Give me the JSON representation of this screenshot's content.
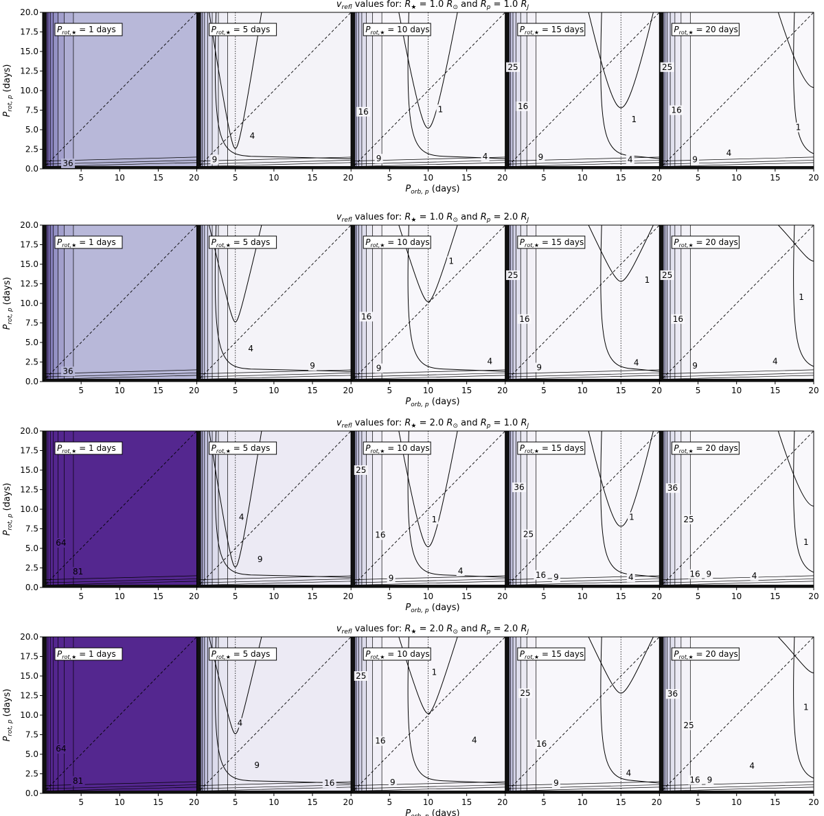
{
  "figure": {
    "grid_rows": 4,
    "grid_cols": 5
  },
  "chart_data": {
    "type": "heatmap",
    "colormap": "Purples",
    "xlabel": "P_orb,p (days)",
    "ylabel": "P_rot,p (days)",
    "xlim": [
      0,
      20
    ],
    "ylim": [
      0,
      20
    ],
    "x_ticks": [
      5,
      10,
      15,
      20
    ],
    "y_ticks": [
      "0.0",
      "2.5",
      "5.0",
      "7.5",
      "10.0",
      "12.5",
      "15.0",
      "17.5",
      "20.0"
    ],
    "rows": [
      {
        "title_prefix": "v_refl values for: ",
        "r_star": "1.0",
        "r_p": "1.0",
        "panels": [
          {
            "label": "1",
            "star_period": 1,
            "contours": [
              {
                "value": 36,
                "x": 3.3,
                "y": 0.7
              }
            ],
            "fill_level": 0.42
          },
          {
            "label": "5",
            "star_period": 5,
            "contours": [
              {
                "value": 4,
                "x": 7.2,
                "y": 4.2
              },
              {
                "value": 9,
                "x": 2.3,
                "y": 1.2
              }
            ],
            "fill_level": 0.06
          },
          {
            "label": "10",
            "star_period": 10,
            "contours": [
              {
                "value": 1,
                "x": 11.6,
                "y": 7.6
              },
              {
                "value": 4,
                "x": 17.4,
                "y": 1.6
              },
              {
                "value": 9,
                "x": 3.6,
                "y": 1.3
              },
              {
                "value": 16,
                "x": 1.6,
                "y": 7.3
              }
            ],
            "fill_level": 0.03
          },
          {
            "label": "15",
            "star_period": 15,
            "contours": [
              {
                "value": 1,
                "x": 16.7,
                "y": 6.3
              },
              {
                "value": 4,
                "x": 16.2,
                "y": 1.2
              },
              {
                "value": 9,
                "x": 4.6,
                "y": 1.5
              },
              {
                "value": 16,
                "x": 2.3,
                "y": 8.0
              },
              {
                "value": 25,
                "x": 1.0,
                "y": 13.0
              }
            ],
            "fill_level": 0.03
          },
          {
            "label": "20",
            "star_period": 20,
            "contours": [
              {
                "value": 1,
                "x": 18.0,
                "y": 5.3
              },
              {
                "value": 4,
                "x": 9.0,
                "y": 2.0
              },
              {
                "value": 9,
                "x": 4.6,
                "y": 1.2
              },
              {
                "value": 16,
                "x": 2.2,
                "y": 7.5
              },
              {
                "value": 25,
                "x": 1.0,
                "y": 13.0
              }
            ],
            "fill_level": 0.02
          }
        ]
      },
      {
        "title_prefix": "v_refl values for: ",
        "r_star": "1.0",
        "r_p": "2.0",
        "panels": [
          {
            "label": "1",
            "star_period": 1,
            "contours": [
              {
                "value": 36,
                "x": 3.3,
                "y": 1.3
              }
            ],
            "fill_level": 0.42
          },
          {
            "label": "5",
            "star_period": 5,
            "contours": [
              {
                "value": 4,
                "x": 7.0,
                "y": 4.2
              },
              {
                "value": 9,
                "x": 15.0,
                "y": 2.0
              }
            ],
            "fill_level": 0.06
          },
          {
            "label": "10",
            "star_period": 10,
            "contours": [
              {
                "value": 1,
                "x": 13.0,
                "y": 15.4
              },
              {
                "value": 4,
                "x": 18.0,
                "y": 2.6
              },
              {
                "value": 9,
                "x": 3.6,
                "y": 1.7
              },
              {
                "value": 16,
                "x": 2.0,
                "y": 8.3
              }
            ],
            "fill_level": 0.03
          },
          {
            "label": "15",
            "star_period": 15,
            "contours": [
              {
                "value": 1,
                "x": 18.4,
                "y": 13.0
              },
              {
                "value": 4,
                "x": 17.0,
                "y": 2.4
              },
              {
                "value": 9,
                "x": 4.4,
                "y": 1.8
              },
              {
                "value": 16,
                "x": 2.5,
                "y": 8.0
              },
              {
                "value": 25,
                "x": 1.0,
                "y": 13.6
              }
            ],
            "fill_level": 0.03
          },
          {
            "label": "20",
            "star_period": 20,
            "contours": [
              {
                "value": 1,
                "x": 18.4,
                "y": 10.8
              },
              {
                "value": 4,
                "x": 15.0,
                "y": 2.6
              },
              {
                "value": 9,
                "x": 4.6,
                "y": 2.0
              },
              {
                "value": 16,
                "x": 2.4,
                "y": 8.0
              },
              {
                "value": 25,
                "x": 1.0,
                "y": 13.6
              }
            ],
            "fill_level": 0.02
          }
        ]
      },
      {
        "title_prefix": "v_refl values for: ",
        "r_star": "2.0",
        "r_p": "1.0",
        "panels": [
          {
            "label": "1",
            "star_period": 1,
            "contours": [
              {
                "value": 64,
                "x": 2.4,
                "y": 5.7
              },
              {
                "value": 81,
                "x": 4.6,
                "y": 2.0
              }
            ],
            "fill_level": 1.0
          },
          {
            "label": "5",
            "star_period": 5,
            "contours": [
              {
                "value": 4,
                "x": 5.8,
                "y": 9.0
              },
              {
                "value": 9,
                "x": 8.2,
                "y": 3.6
              }
            ],
            "fill_level": 0.12
          },
          {
            "label": "10",
            "star_period": 10,
            "contours": [
              {
                "value": 1,
                "x": 10.8,
                "y": 8.7
              },
              {
                "value": 4,
                "x": 14.2,
                "y": 2.1
              },
              {
                "value": 9,
                "x": 5.2,
                "y": 1.2
              },
              {
                "value": 16,
                "x": 3.8,
                "y": 6.7
              },
              {
                "value": 25,
                "x": 1.3,
                "y": 15.0
              }
            ],
            "fill_level": 0.04
          },
          {
            "label": "15",
            "star_period": 15,
            "contours": [
              {
                "value": 1,
                "x": 16.4,
                "y": 9.0
              },
              {
                "value": 4,
                "x": 16.3,
                "y": 1.3
              },
              {
                "value": 9,
                "x": 6.6,
                "y": 1.3
              },
              {
                "value": 16,
                "x": 4.6,
                "y": 1.6
              },
              {
                "value": 25,
                "x": 3.0,
                "y": 6.8
              },
              {
                "value": 36,
                "x": 1.8,
                "y": 12.8
              }
            ],
            "fill_level": 0.03
          },
          {
            "label": "20",
            "star_period": 20,
            "contours": [
              {
                "value": 1,
                "x": 19.0,
                "y": 5.8
              },
              {
                "value": 4,
                "x": 12.3,
                "y": 1.5
              },
              {
                "value": 9,
                "x": 6.4,
                "y": 1.7
              },
              {
                "value": 16,
                "x": 4.6,
                "y": 1.7
              },
              {
                "value": 25,
                "x": 3.8,
                "y": 8.7
              },
              {
                "value": 36,
                "x": 1.7,
                "y": 12.7
              }
            ],
            "fill_level": 0.02
          }
        ]
      },
      {
        "title_prefix": "v_refl values for: ",
        "r_star": "2.0",
        "r_p": "2.0",
        "panels": [
          {
            "label": "1",
            "star_period": 1,
            "contours": [
              {
                "value": 64,
                "x": 2.4,
                "y": 5.7
              },
              {
                "value": 81,
                "x": 4.6,
                "y": 1.6
              }
            ],
            "fill_level": 1.0
          },
          {
            "label": "5",
            "star_period": 5,
            "contours": [
              {
                "value": 4,
                "x": 5.6,
                "y": 9.0
              },
              {
                "value": 9,
                "x": 7.8,
                "y": 3.6
              },
              {
                "value": 16,
                "x": 17.2,
                "y": 1.3
              }
            ],
            "fill_level": 0.12
          },
          {
            "label": "10",
            "star_period": 10,
            "contours": [
              {
                "value": 1,
                "x": 10.8,
                "y": 15.5
              },
              {
                "value": 4,
                "x": 16.0,
                "y": 6.8
              },
              {
                "value": 9,
                "x": 5.4,
                "y": 1.4
              },
              {
                "value": 16,
                "x": 3.8,
                "y": 6.7
              },
              {
                "value": 25,
                "x": 1.3,
                "y": 15.0
              }
            ],
            "fill_level": 0.04
          },
          {
            "label": "15",
            "star_period": 15,
            "contours": [
              {
                "value": 4,
                "x": 16.0,
                "y": 2.6
              },
              {
                "value": 9,
                "x": 6.6,
                "y": 1.3
              },
              {
                "value": 16,
                "x": 4.7,
                "y": 6.3
              },
              {
                "value": 25,
                "x": 2.6,
                "y": 12.8
              }
            ],
            "fill_level": 0.03
          },
          {
            "label": "20",
            "star_period": 20,
            "contours": [
              {
                "value": 1,
                "x": 19.0,
                "y": 11.0
              },
              {
                "value": 4,
                "x": 12.0,
                "y": 3.5
              },
              {
                "value": 9,
                "x": 6.5,
                "y": 1.7
              },
              {
                "value": 16,
                "x": 4.6,
                "y": 1.7
              },
              {
                "value": 25,
                "x": 3.8,
                "y": 8.7
              },
              {
                "value": 36,
                "x": 1.7,
                "y": 12.7
              }
            ],
            "fill_level": 0.02
          }
        ]
      }
    ]
  }
}
